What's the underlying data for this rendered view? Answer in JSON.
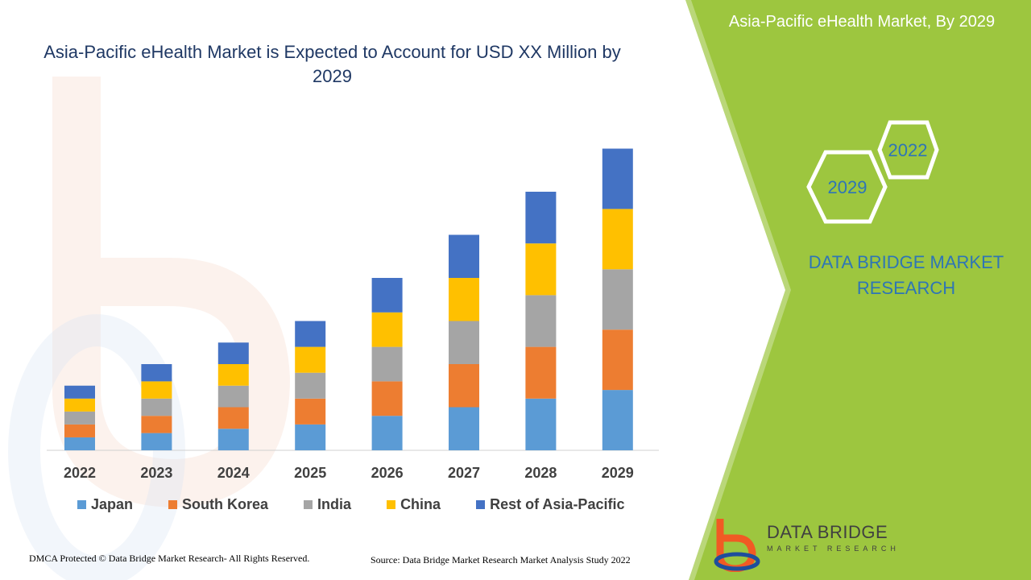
{
  "chart_data": {
    "type": "bar",
    "stacked": true,
    "title": "Asia-Pacific eHealth Market is Expected to Account for USD XX Million by 2029",
    "categories": [
      "2022",
      "2023",
      "2024",
      "2025",
      "2026",
      "2027",
      "2028",
      "2029"
    ],
    "series": [
      {
        "name": "Japan",
        "color": "#5b9bd5",
        "values": [
          1.5,
          2.0,
          2.5,
          3.0,
          4.0,
          5.0,
          6.0,
          7.0
        ]
      },
      {
        "name": "South Korea",
        "color": "#ed7d31",
        "values": [
          1.5,
          2.0,
          2.5,
          3.0,
          4.0,
          5.0,
          6.0,
          7.0
        ]
      },
      {
        "name": "India",
        "color": "#a5a5a5",
        "values": [
          1.5,
          2.0,
          2.5,
          3.0,
          4.0,
          5.0,
          6.0,
          7.0
        ]
      },
      {
        "name": "China",
        "color": "#ffc000",
        "values": [
          1.5,
          2.0,
          2.5,
          3.0,
          4.0,
          5.0,
          6.0,
          7.0
        ]
      },
      {
        "name": "Rest of Asia-Pacific",
        "color": "#4472c4",
        "values": [
          1.5,
          2.0,
          2.5,
          3.0,
          4.0,
          5.0,
          6.0,
          7.0
        ]
      }
    ],
    "legend_position": "bottom",
    "grid": false
  },
  "side_panel": {
    "title": "Asia-Pacific eHealth Market, By 2029",
    "hex_labels": [
      "2022",
      "2029"
    ],
    "brand_text": "DATA BRIDGE MARKET RESEARCH",
    "color": "#9dc63f"
  },
  "logo": {
    "name": "DATA BRIDGE",
    "subtitle": "MARKET RESEARCH"
  },
  "footer": {
    "left": "DMCA Protected © Data Bridge Market Research- All Rights Reserved.",
    "right": "Source: Data Bridge Market Research Market Analysis Study 2022"
  }
}
